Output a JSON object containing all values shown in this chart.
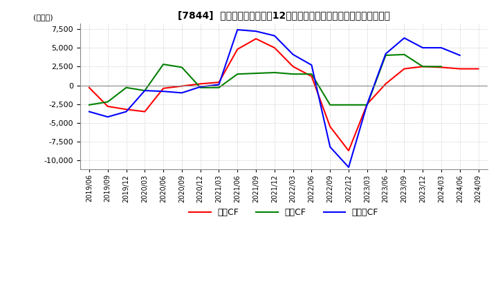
{
  "title": "[7844]  キャッシュフローの12か月移動合計の対前年同期増減額の推移",
  "ylabel": "(百万円)",
  "ylim": [
    -11200,
    8200
  ],
  "yticks": [
    7500,
    5000,
    2500,
    0,
    -2500,
    -5000,
    -7500,
    -10000
  ],
  "legend_labels": [
    "営業CF",
    "投資CF",
    "フリーCF"
  ],
  "colors": {
    "eigyo": "#ff0000",
    "toshi": "#008000",
    "free": "#0000ff"
  },
  "x_labels": [
    "2019/06",
    "2019/09",
    "2019/12",
    "2020/03",
    "2020/06",
    "2020/09",
    "2020/12",
    "2021/03",
    "2021/06",
    "2021/09",
    "2021/12",
    "2022/03",
    "2022/06",
    "2022/09",
    "2022/12",
    "2023/03",
    "2023/06",
    "2023/09",
    "2023/12",
    "2024/03",
    "2024/06",
    "2024/09"
  ],
  "eigyo_cf": [
    -300,
    -2800,
    -3200,
    -3500,
    -400,
    -100,
    200,
    400,
    4800,
    6200,
    5000,
    2500,
    1200,
    -5500,
    -8700,
    -2500,
    200,
    2200,
    2500,
    2400,
    2200,
    2200
  ],
  "toshi_cf": [
    -2600,
    -2200,
    -300,
    -700,
    2800,
    2400,
    -300,
    -300,
    1500,
    1600,
    1700,
    1500,
    1500,
    -2600,
    -2600,
    -2600,
    4000,
    4100,
    2500,
    2500,
    null,
    null
  ],
  "free_cf": [
    -3500,
    -4200,
    -3500,
    -700,
    -800,
    -1000,
    -200,
    100,
    7400,
    7200,
    6600,
    4100,
    2700,
    -8200,
    -10900,
    -2500,
    4200,
    6300,
    5000,
    5000,
    4000,
    null
  ],
  "background_color": "#ffffff",
  "grid_color": "#cccccc",
  "grid_style": "dotted"
}
